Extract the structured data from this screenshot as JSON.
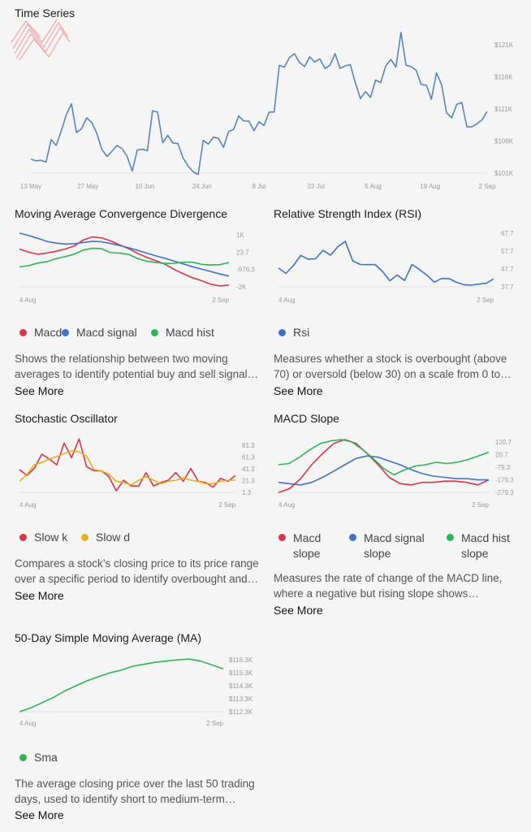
{
  "colors": {
    "blue": "#4472c4",
    "red": "#d9364b",
    "green": "#2fb45a",
    "yellow": "#e8b21b",
    "line": "#5b85b8"
  },
  "time_series": {
    "title": "Time Series",
    "chart_data": {
      "type": "line",
      "x_ticks": [
        "13 May",
        "27 May",
        "10 Jun",
        "24 Jun",
        "8 Jul",
        "22 Jul",
        "5 Aug",
        "19 Aug",
        "2 Sep"
      ],
      "y_ticks": [
        "$121K",
        "$116K",
        "$111K",
        "$106K",
        "$101K"
      ],
      "ylim": [
        101000,
        121000
      ],
      "series": [
        {
          "values": [
            103200,
            102900,
            103000,
            102700,
            106200,
            105300,
            107600,
            110100,
            111800,
            107300,
            107900,
            109600,
            108900,
            107200,
            104700,
            103600,
            104400,
            105300,
            104800,
            103600,
            101300,
            104600,
            104700,
            104500,
            110700,
            110500,
            105700,
            106900,
            105700,
            105600,
            103400,
            102100,
            101200,
            100800,
            106100,
            105500,
            106600,
            106400,
            105000,
            107500,
            107800,
            109900,
            109100,
            109100,
            107600,
            109000,
            108400,
            110500,
            110500,
            117800,
            117500,
            119000,
            119600,
            118200,
            117600,
            119100,
            118300,
            118800,
            117300,
            117800,
            119600,
            117300,
            117700,
            117900,
            115100,
            112600,
            113700,
            112800,
            115500,
            115100,
            117700,
            118700,
            117500,
            122900,
            117800,
            117600,
            117000,
            114800,
            114700,
            112500,
            116600,
            114800,
            110400,
            109600,
            111700,
            112000,
            108200,
            108200,
            108700,
            109300,
            110600
          ]
        }
      ]
    }
  },
  "macd": {
    "title": "Moving Average Convergence Divergence",
    "chart_data": {
      "type": "line",
      "x_ticks": [
        "4 Aug",
        "2 Sep"
      ],
      "y_ticks": [
        "1K",
        "23.7",
        "-976.3",
        "-2K"
      ],
      "ylim": [
        -2000,
        1000
      ],
      "series": [
        {
          "name": "Macd",
          "values": [
            180,
            0,
            -120,
            -50,
            50,
            180,
            350,
            700,
            880,
            820,
            650,
            420,
            200,
            -80,
            -300,
            -500,
            -700,
            -1000,
            -1250,
            -1480,
            -1650,
            -1850,
            -1950,
            -1900
          ]
        },
        {
          "name": "Macd signal",
          "values": [
            1100,
            960,
            800,
            620,
            520,
            470,
            480,
            560,
            620,
            600,
            500,
            380,
            250,
            100,
            -60,
            -220,
            -360,
            -520,
            -680,
            -840,
            -980,
            -1120,
            -1260,
            -1380
          ]
        },
        {
          "name": "Macd hist",
          "values": [
            -850,
            -780,
            -630,
            -550,
            -380,
            -260,
            -120,
            120,
            220,
            200,
            -30,
            -60,
            -130,
            -380,
            -530,
            -600,
            -650,
            -640,
            -580,
            -580,
            -700,
            -740,
            -720,
            -600
          ]
        }
      ]
    },
    "legend": [
      {
        "label": "Macd",
        "color": "#d9364b"
      },
      {
        "label": "Macd signal",
        "color": "#4472c4"
      },
      {
        "label": "Macd hist",
        "color": "#2fb45a"
      }
    ],
    "desc": [
      "Shows the relationship between two moving",
      "averages to identify potential buy and sell signal…"
    ],
    "see_more": "See More"
  },
  "rsi": {
    "title": "Relative Strength Index (RSI)",
    "chart_data": {
      "type": "line",
      "x_ticks": [
        "4 Aug",
        "2 Sep"
      ],
      "y_ticks": [
        "67.7",
        "57.7",
        "47.7",
        "37.7"
      ],
      "ylim": [
        37.7,
        67.7
      ],
      "series": [
        {
          "name": "Rsi",
          "values": [
            48.2,
            45.2,
            49.5,
            55.3,
            53.1,
            53.4,
            58.1,
            55.4,
            60.1,
            63.1,
            52.3,
            50.2,
            50.1,
            50.2,
            46.4,
            41.1,
            44.3,
            41.2,
            50.2,
            47.4,
            44.2,
            40.3,
            42.4,
            42.3,
            40.2,
            38.9,
            38.6,
            39.2,
            39.7,
            42.1
          ]
        }
      ]
    },
    "legend": [
      {
        "label": "Rsi",
        "color": "#4472c4"
      }
    ],
    "desc": [
      "Measures whether a stock is overbought (above",
      "70) or oversold (below 30) on a scale from 0 to…"
    ],
    "see_more": "See More"
  },
  "stoch": {
    "title": "Stochastic Oscillator",
    "chart_data": {
      "type": "line",
      "x_ticks": [
        "4 Aug",
        "2 Sep"
      ],
      "y_ticks": [
        "81.3",
        "61.3",
        "41.3",
        "21.3",
        "1.3"
      ],
      "ylim": [
        1.3,
        81.3
      ],
      "series": [
        {
          "name": "Slow k",
          "values": [
            40,
            30,
            42,
            66,
            58,
            48,
            85,
            60,
            92,
            45,
            38,
            38,
            28,
            4,
            22,
            12,
            12,
            35,
            12,
            18,
            22,
            35,
            20,
            42,
            20,
            18,
            10,
            25,
            20,
            30
          ]
        },
        {
          "name": "Slow d",
          "values": [
            20,
            32,
            48,
            52,
            58,
            62,
            67,
            72,
            70,
            63,
            40,
            38,
            32,
            20,
            18,
            14,
            22,
            28,
            22,
            16,
            20,
            22,
            26,
            22,
            20,
            16,
            16,
            20,
            22,
            22
          ]
        }
      ]
    },
    "legend": [
      {
        "label": "Slow k",
        "color": "#d9364b"
      },
      {
        "label": "Slow d",
        "color": "#e8b21b"
      }
    ],
    "desc": [
      "Compares a stock’s closing price to its price range",
      "over a specific period to identify overbought and…"
    ],
    "see_more": "See More"
  },
  "macd_slope": {
    "title": "MACD Slope",
    "chart_data": {
      "type": "line",
      "x_ticks": [
        "4 Aug",
        "2 Sep"
      ],
      "y_ticks": [
        "120.7",
        "20.7",
        "-79.3",
        "-179.3",
        "-279.3"
      ],
      "ylim": [
        -279.3,
        120.7
      ],
      "series": [
        {
          "name": "Macd slope",
          "values": [
            -280,
            -250,
            -170,
            -60,
            30,
            110,
            140,
            110,
            30,
            -60,
            -160,
            -210,
            -220,
            -200,
            -200,
            -190,
            -190,
            -200,
            -220,
            -180
          ]
        },
        {
          "name": "Macd signal slope",
          "values": [
            -200,
            -210,
            -220,
            -200,
            -160,
            -110,
            -60,
            -10,
            10,
            0,
            -30,
            -60,
            -100,
            -130,
            -150,
            -160,
            -170,
            -170,
            -180,
            -180
          ]
        },
        {
          "name": "Macd hist slope",
          "values": [
            -60,
            -50,
            0,
            60,
            110,
            130,
            140,
            120,
            60,
            -10,
            -90,
            -140,
            -100,
            -70,
            -60,
            -40,
            -50,
            -40,
            -20,
            10,
            40
          ]
        }
      ]
    },
    "legend": [
      {
        "label": "Macd slope",
        "color": "#d9364b"
      },
      {
        "label": "Macd signal slope",
        "color": "#4472c4"
      },
      {
        "label": "Macd hist slope",
        "color": "#2fb45a"
      }
    ],
    "desc": [
      "Measures the rate of change of the MACD line,",
      "where a negative but rising slope shows…"
    ],
    "see_more": "See More"
  },
  "sma": {
    "title": "50-Day Simple Moving Average (MA)",
    "chart_data": {
      "type": "line",
      "x_ticks": [
        "4 Aug",
        "2 Sep"
      ],
      "y_ticks": [
        "$116.3K",
        "$115.3K",
        "$114.3K",
        "$113.3K",
        "$112.3K"
      ],
      "ylim": [
        112.3,
        116.3
      ],
      "series": [
        {
          "name": "Sma",
          "values": [
            112.3,
            112.6,
            113.0,
            113.4,
            113.9,
            114.3,
            114.7,
            115.0,
            115.3,
            115.5,
            115.8,
            115.95,
            116.1,
            116.2,
            116.3,
            116.35,
            116.2,
            115.9,
            115.6
          ]
        }
      ]
    },
    "legend": [
      {
        "label": "Sma",
        "color": "#2fb45a"
      }
    ],
    "desc": [
      "The average closing price over the last 50 trading",
      "days, used to identify short to medium-term…"
    ],
    "see_more": "See More"
  }
}
